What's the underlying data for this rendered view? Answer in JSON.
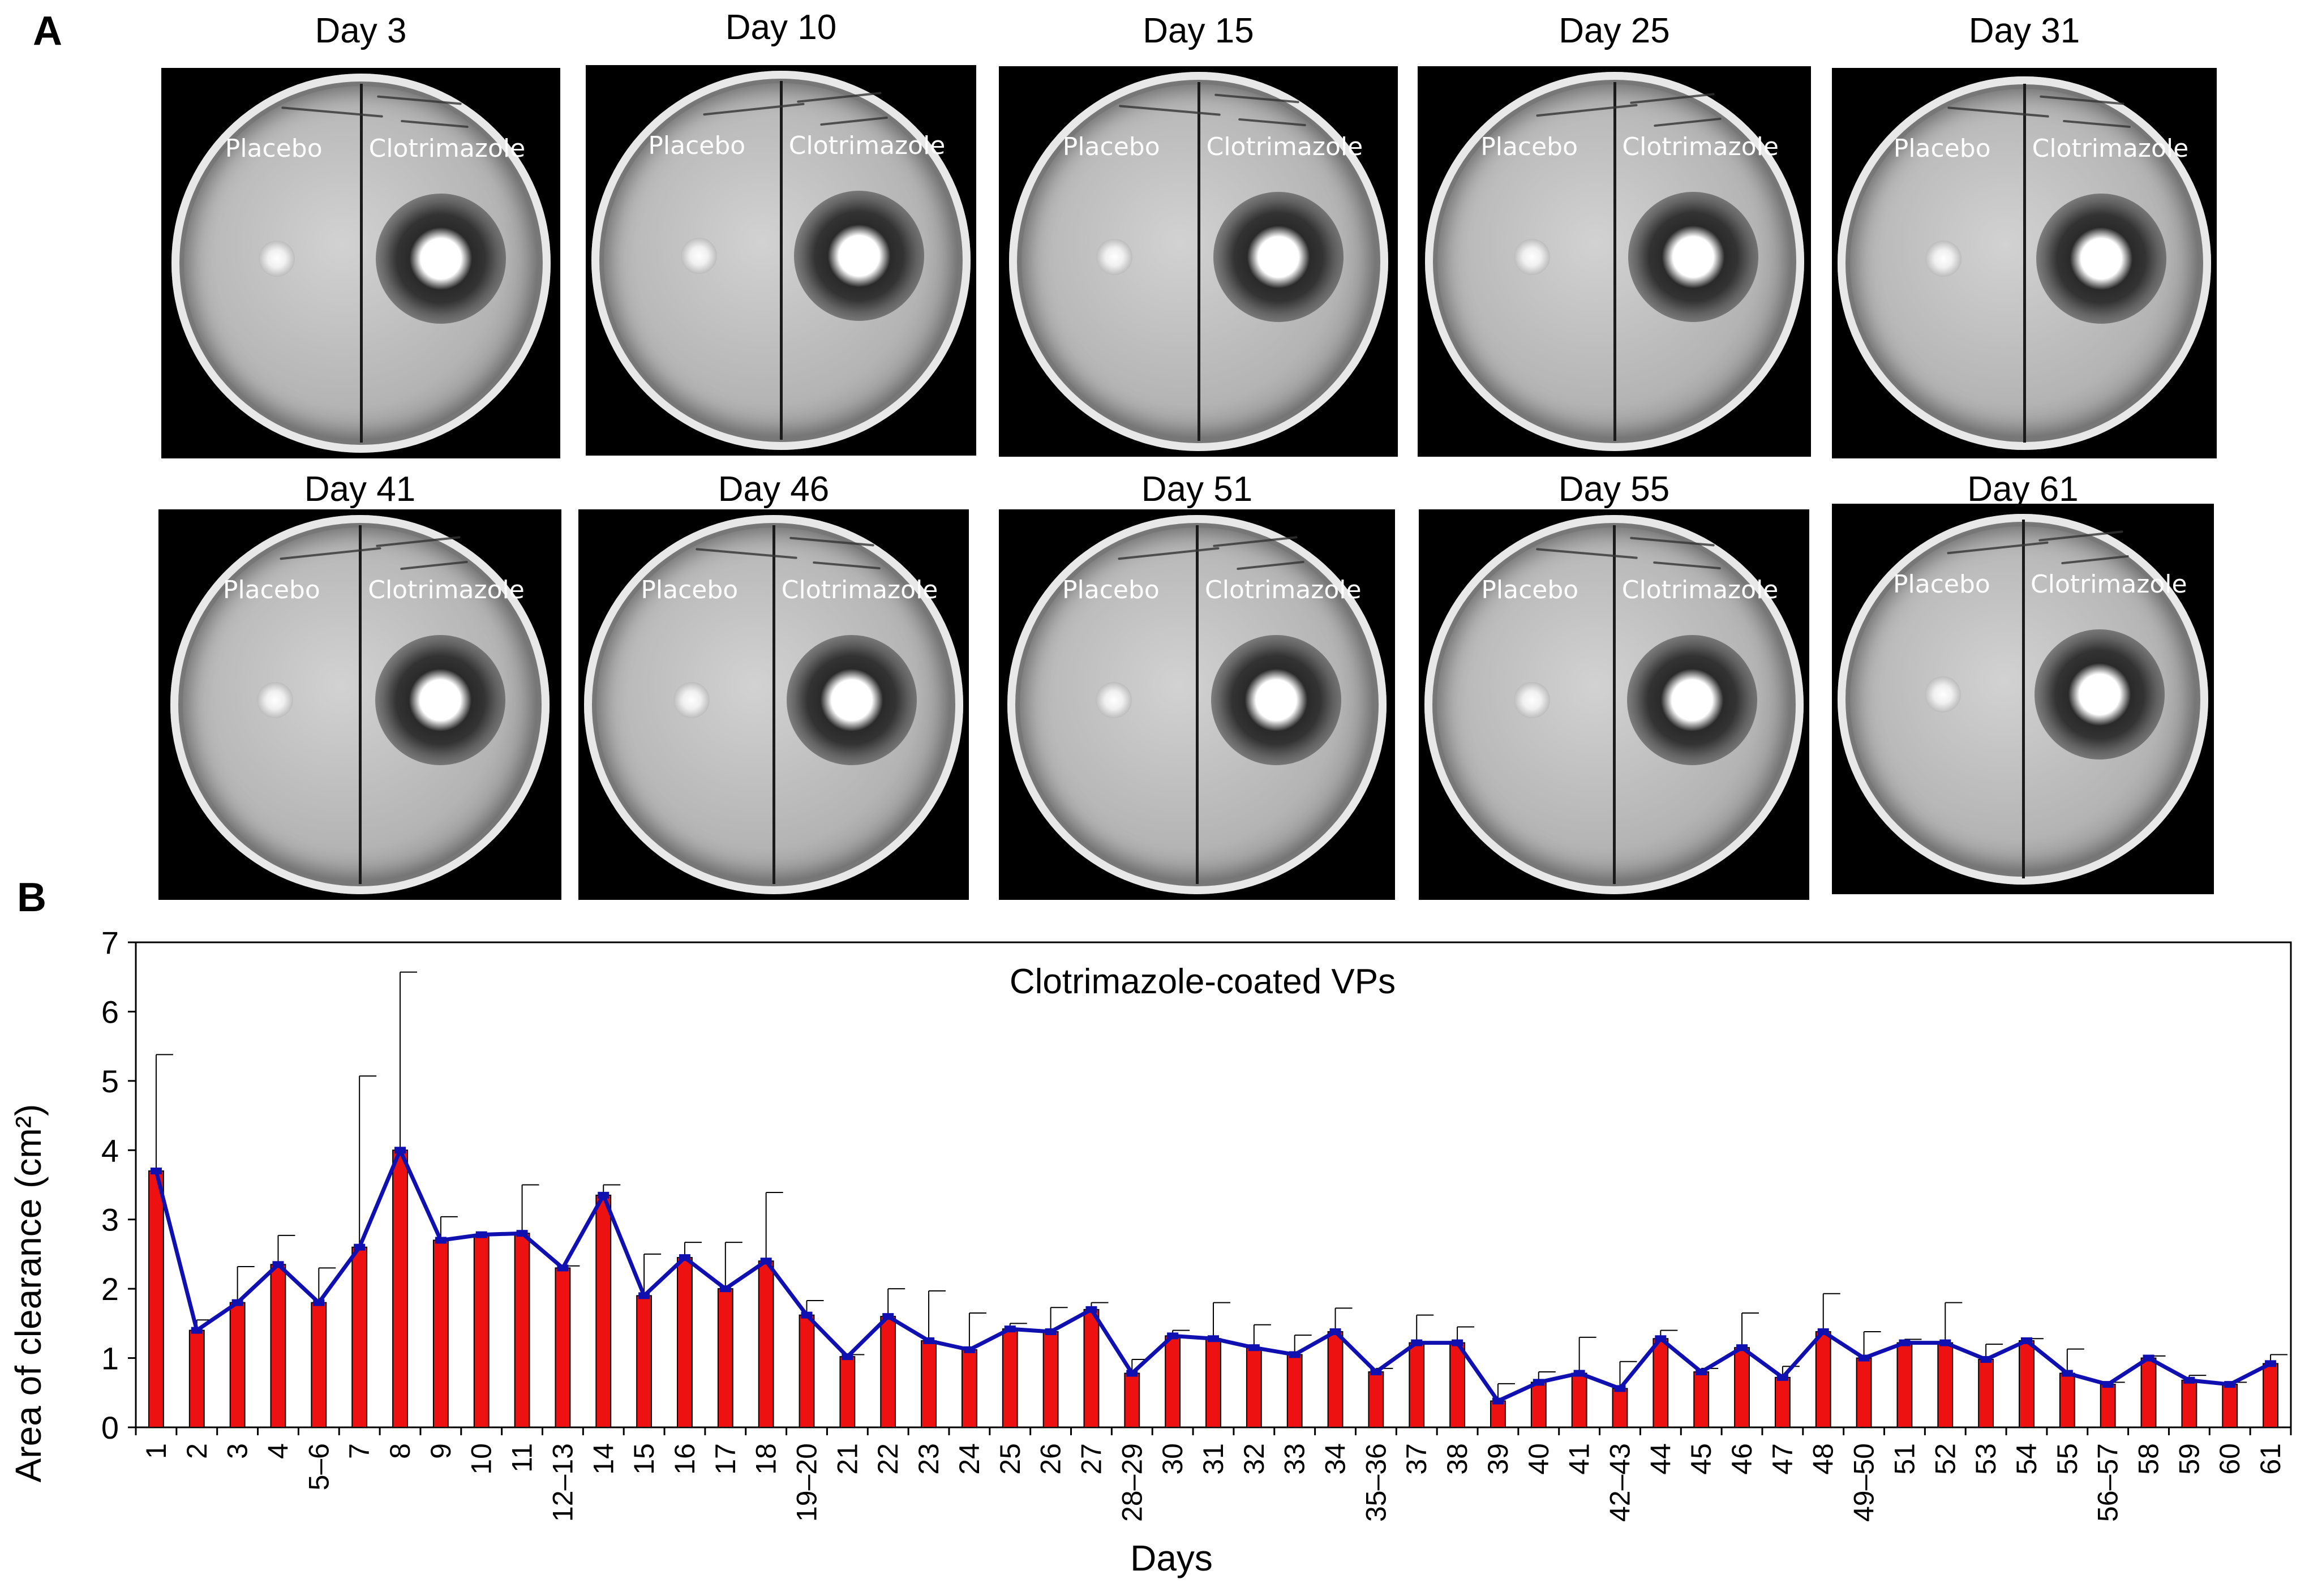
{
  "panel_a": {
    "letter": "A",
    "zone_labels": {
      "left": "Placebo",
      "right": "Clotrimazole"
    },
    "plates": [
      {
        "label": "Day 3"
      },
      {
        "label": "Day 10"
      },
      {
        "label": "Day 15"
      },
      {
        "label": "Day 25"
      },
      {
        "label": "Day 31"
      },
      {
        "label": "Day 41"
      },
      {
        "label": "Day 46"
      },
      {
        "label": "Day 51"
      },
      {
        "label": "Day 55"
      },
      {
        "label": "Day 61"
      }
    ]
  },
  "panel_b": {
    "letter": "B"
  },
  "chart_data": {
    "type": "bar",
    "title": "Clotrimazole-coated  VPs",
    "xlabel": "Days",
    "ylabel": "Area of clearance (cm²)",
    "ylim": [
      0,
      7
    ],
    "yticks": [
      0,
      1,
      2,
      3,
      4,
      5,
      6,
      7
    ],
    "grid": false,
    "colors": {
      "bar": "#ee1111",
      "bar_edge": "#000000",
      "line": "#1010b0",
      "error_bar": "#000000"
    },
    "categories": [
      "1",
      "2",
      "3",
      "4",
      "5–6",
      "7",
      "8",
      "9",
      "10",
      "11",
      "12–13",
      "14",
      "15",
      "16",
      "17",
      "18",
      "19–20",
      "21",
      "22",
      "23",
      "24",
      "25",
      "26",
      "27",
      "28–29",
      "30",
      "31",
      "32",
      "33",
      "34",
      "35–36",
      "37",
      "38",
      "39",
      "40",
      "41",
      "42–43",
      "44",
      "45",
      "46",
      "47",
      "48",
      "49–50",
      "51",
      "52",
      "53",
      "54",
      "55",
      "56–57",
      "58",
      "59",
      "60",
      "61"
    ],
    "series": [
      {
        "type": "bar",
        "values": [
          3.7,
          1.4,
          1.8,
          2.35,
          1.8,
          2.6,
          4.0,
          2.7,
          2.78,
          2.8,
          2.3,
          3.35,
          1.9,
          2.45,
          2.0,
          2.4,
          1.62,
          1.02,
          1.6,
          1.25,
          1.12,
          1.42,
          1.38,
          1.7,
          0.78,
          1.32,
          1.28,
          1.15,
          1.05,
          1.38,
          0.8,
          1.22,
          1.22,
          0.38,
          0.65,
          0.78,
          0.56,
          1.28,
          0.8,
          1.15,
          0.72,
          1.38,
          1.0,
          1.22,
          1.22,
          0.98,
          1.25,
          0.78,
          0.62,
          1.0,
          0.68,
          0.62,
          0.92
        ],
        "error_upper": [
          5.38,
          1.55,
          2.32,
          2.77,
          2.3,
          5.07,
          6.57,
          3.04,
          2.8,
          3.5,
          2.33,
          3.5,
          2.5,
          2.67,
          2.67,
          3.39,
          1.83,
          1.05,
          2.0,
          1.97,
          1.65,
          1.5,
          1.73,
          1.8,
          0.98,
          1.4,
          1.8,
          1.48,
          1.33,
          1.72,
          0.85,
          1.62,
          1.45,
          0.63,
          0.8,
          1.3,
          0.95,
          1.4,
          0.85,
          1.65,
          0.88,
          1.93,
          1.38,
          1.27,
          1.8,
          1.2,
          1.28,
          1.13,
          0.65,
          1.03,
          0.75,
          0.65,
          1.05
        ]
      },
      {
        "type": "line",
        "values": [
          3.7,
          1.4,
          1.8,
          2.35,
          1.8,
          2.6,
          4.0,
          2.7,
          2.78,
          2.8,
          2.3,
          3.35,
          1.9,
          2.45,
          2.0,
          2.4,
          1.62,
          1.02,
          1.6,
          1.25,
          1.12,
          1.42,
          1.38,
          1.7,
          0.78,
          1.32,
          1.28,
          1.15,
          1.05,
          1.38,
          0.8,
          1.22,
          1.22,
          0.38,
          0.65,
          0.78,
          0.56,
          1.28,
          0.8,
          1.15,
          0.72,
          1.38,
          1.0,
          1.22,
          1.22,
          0.98,
          1.25,
          0.78,
          0.62,
          1.0,
          0.68,
          0.62,
          0.92
        ]
      }
    ]
  }
}
